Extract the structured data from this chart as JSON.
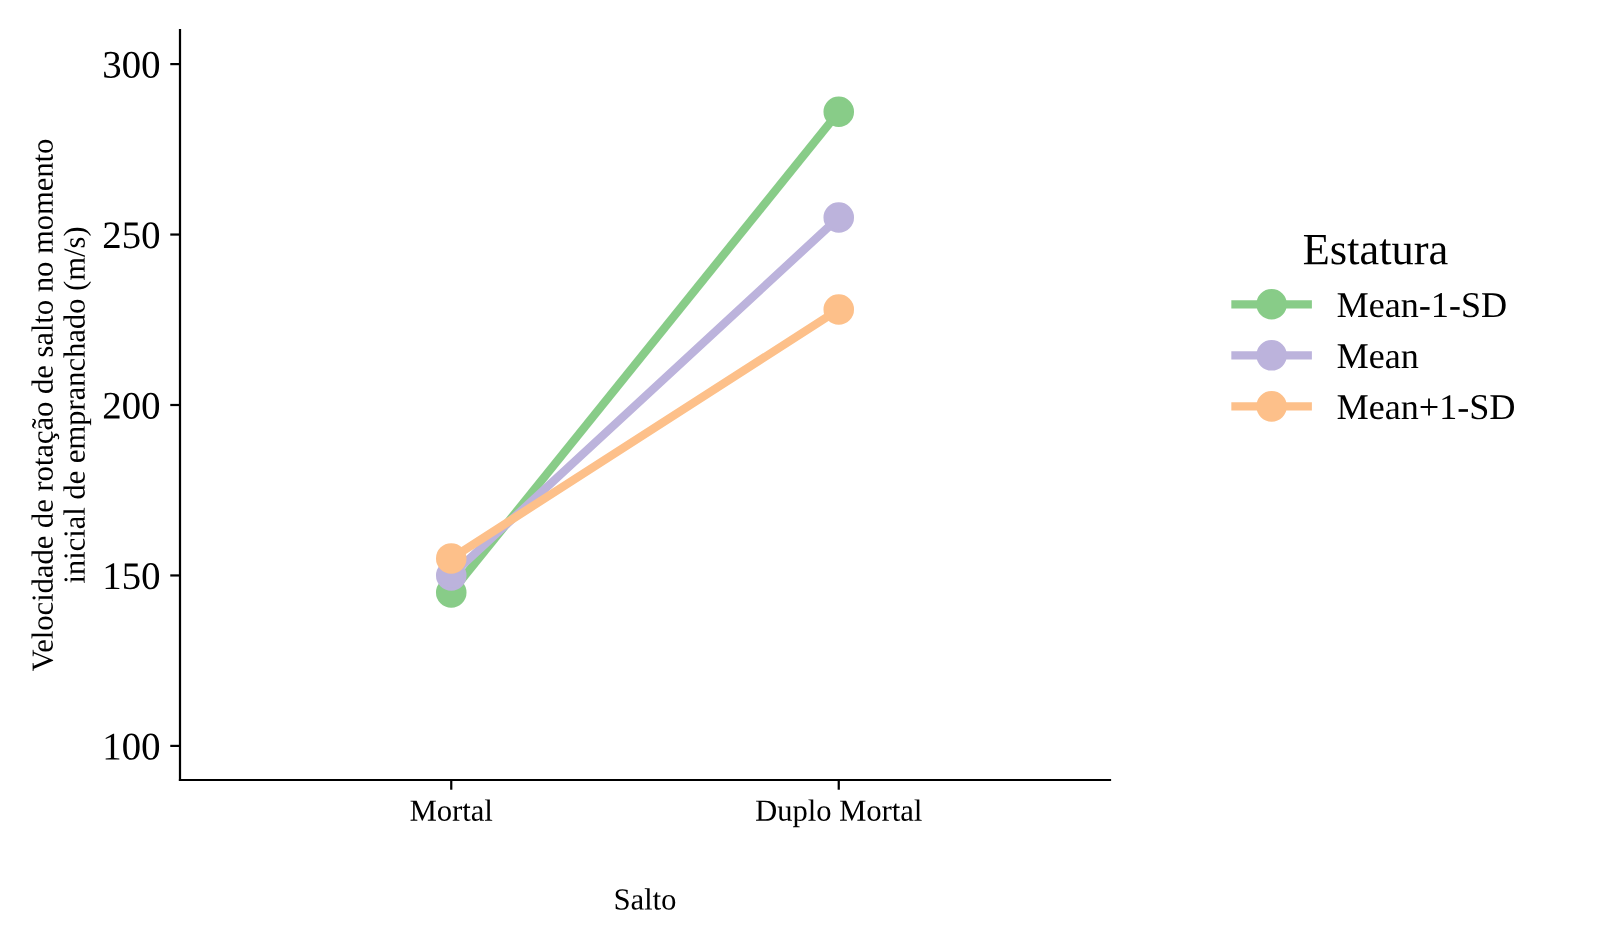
{
  "chart_data": {
    "type": "line",
    "xlabel": "Salto",
    "ylabel": "Velocidade de rotação de salto no momento\ninicial de empranchado (m/s)",
    "categories": [
      "Mortal",
      "Duplo Mortal"
    ],
    "series": [
      {
        "name": "Mean-1-SD",
        "color": "#88cc88",
        "values": [
          145,
          286
        ]
      },
      {
        "name": "Mean",
        "color": "#bcb3dc",
        "values": [
          150,
          255
        ]
      },
      {
        "name": "Mean+1-SD",
        "color": "#fdc08a",
        "values": [
          155,
          228
        ]
      }
    ],
    "ylim": [
      90,
      310
    ],
    "yticks": [
      100,
      150,
      200,
      250,
      300
    ],
    "grid": false,
    "legend": "right",
    "legend_title": "Estatura",
    "marker": "circle",
    "line_style": "solid"
  }
}
